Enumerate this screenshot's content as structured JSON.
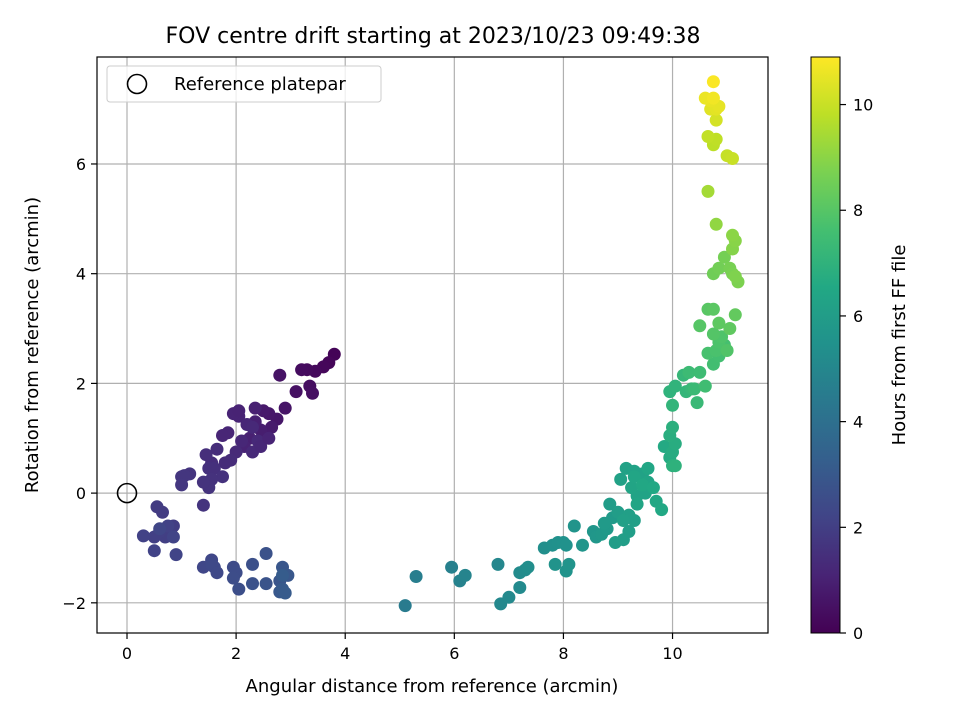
{
  "chart_data": {
    "type": "scatter",
    "title": "FOV centre drift starting at 2023/10/23 09:49:38",
    "xlabel": "Angular distance from reference (arcmin)",
    "ylabel": "Rotation from reference (arcmin)",
    "xlim": [
      -0.55,
      11.75
    ],
    "ylim": [
      -2.55,
      7.95
    ],
    "xticks": [
      0,
      2,
      4,
      6,
      8,
      10
    ],
    "yticks": [
      -2,
      0,
      2,
      4,
      6
    ],
    "grid": true,
    "legend": {
      "placement": "top-left",
      "entries": [
        "Reference platepar"
      ]
    },
    "reference_point": {
      "x": 0,
      "y": 0,
      "label": "Reference platepar"
    },
    "colorbar": {
      "label": "Hours from first FF file",
      "min": 0,
      "max": 10.9,
      "ticks": [
        0,
        2,
        4,
        6,
        8,
        10
      ],
      "colormap": "viridis"
    },
    "points": [
      [
        3.8,
        2.53,
        0.1
      ],
      [
        3.7,
        2.38,
        0.15
      ],
      [
        3.6,
        2.3,
        0.2
      ],
      [
        3.45,
        2.22,
        0.25
      ],
      [
        3.3,
        2.25,
        0.3
      ],
      [
        3.2,
        2.25,
        0.35
      ],
      [
        3.35,
        1.95,
        0.4
      ],
      [
        3.4,
        1.82,
        0.45
      ],
      [
        3.1,
        1.85,
        0.5
      ],
      [
        2.8,
        2.15,
        0.55
      ],
      [
        2.9,
        1.55,
        0.6
      ],
      [
        2.75,
        1.35,
        0.65
      ],
      [
        2.6,
        1.45,
        0.7
      ],
      [
        2.5,
        1.5,
        0.75
      ],
      [
        2.65,
        1.2,
        0.8
      ],
      [
        2.55,
        1.05,
        0.85
      ],
      [
        2.45,
        1.15,
        0.9
      ],
      [
        2.35,
        1.3,
        0.95
      ],
      [
        2.25,
        1.0,
        1.0
      ],
      [
        2.15,
        0.85,
        1.05
      ],
      [
        2.05,
        1.4,
        1.1
      ],
      [
        1.95,
        1.45,
        1.1
      ],
      [
        1.85,
        1.1,
        1.15
      ],
      [
        1.75,
        1.05,
        1.15
      ],
      [
        2.1,
        0.95,
        1.2
      ],
      [
        2.2,
        1.25,
        1.2
      ],
      [
        2.3,
        1.2,
        1.25
      ],
      [
        2.4,
        0.95,
        1.25
      ],
      [
        2.0,
        0.75,
        1.3
      ],
      [
        1.9,
        0.6,
        1.35
      ],
      [
        1.8,
        0.55,
        1.35
      ],
      [
        1.65,
        0.8,
        1.4
      ],
      [
        1.55,
        0.55,
        1.4
      ],
      [
        1.45,
        0.7,
        1.45
      ],
      [
        1.5,
        0.45,
        1.5
      ],
      [
        1.6,
        0.45,
        1.5
      ],
      [
        1.75,
        0.3,
        1.55
      ],
      [
        1.55,
        0.25,
        1.55
      ],
      [
        1.5,
        0.1,
        1.6
      ],
      [
        1.4,
        0.2,
        1.6
      ],
      [
        1.4,
        -0.22,
        1.65
      ],
      [
        1.15,
        0.35,
        1.65
      ],
      [
        1.05,
        0.32,
        1.7
      ],
      [
        1.0,
        0.3,
        1.7
      ],
      [
        1.0,
        0.15,
        1.75
      ],
      [
        2.3,
        0.75,
        1.25
      ],
      [
        2.45,
        0.85,
        1.2
      ],
      [
        2.6,
        1.0,
        1.1
      ],
      [
        2.35,
        1.55,
        1.0
      ],
      [
        2.05,
        1.5,
        1.05
      ],
      [
        0.65,
        -0.35,
        1.9
      ],
      [
        0.55,
        -0.25,
        1.9
      ],
      [
        0.85,
        -0.6,
        1.95
      ],
      [
        0.8,
        -0.75,
        2.0
      ],
      [
        0.7,
        -0.8,
        2.0
      ],
      [
        0.6,
        -0.7,
        2.05
      ],
      [
        0.5,
        -0.8,
        2.05
      ],
      [
        0.3,
        -0.78,
        2.1
      ],
      [
        0.75,
        -0.6,
        2.1
      ],
      [
        0.5,
        -1.05,
        2.15
      ],
      [
        0.9,
        -1.12,
        2.2
      ],
      [
        0.85,
        -0.8,
        2.2
      ],
      [
        0.6,
        -0.65,
        2.25
      ],
      [
        1.4,
        -1.35,
        2.3
      ],
      [
        1.55,
        -1.22,
        2.3
      ],
      [
        1.6,
        -1.35,
        2.35
      ],
      [
        1.55,
        -1.3,
        2.4
      ],
      [
        1.65,
        -1.45,
        2.4
      ],
      [
        1.95,
        -1.35,
        2.45
      ],
      [
        2.0,
        -1.45,
        2.5
      ],
      [
        1.95,
        -1.55,
        2.55
      ],
      [
        2.05,
        -1.75,
        2.6
      ],
      [
        2.3,
        -1.3,
        2.65
      ],
      [
        2.3,
        -1.65,
        2.7
      ],
      [
        2.55,
        -1.1,
        2.75
      ],
      [
        2.55,
        -1.65,
        2.8
      ],
      [
        2.8,
        -1.6,
        2.85
      ],
      [
        2.85,
        -1.35,
        2.9
      ],
      [
        2.95,
        -1.5,
        2.95
      ],
      [
        2.8,
        -1.8,
        3.0
      ],
      [
        2.85,
        -1.75,
        3.05
      ],
      [
        2.9,
        -1.82,
        3.1
      ],
      [
        2.85,
        -1.5,
        3.15
      ],
      [
        5.1,
        -2.05,
        4.5
      ],
      [
        5.3,
        -1.52,
        4.6
      ],
      [
        5.95,
        -1.35,
        4.7
      ],
      [
        6.1,
        -1.6,
        4.8
      ],
      [
        6.2,
        -1.5,
        4.9
      ],
      [
        6.8,
        -1.3,
        5.0
      ],
      [
        6.85,
        -2.02,
        5.05
      ],
      [
        7.0,
        -1.9,
        5.1
      ],
      [
        7.2,
        -1.72,
        5.15
      ],
      [
        7.2,
        -1.45,
        5.2
      ],
      [
        7.3,
        -1.4,
        5.25
      ],
      [
        7.35,
        -1.35,
        5.3
      ],
      [
        7.65,
        -1.0,
        5.35
      ],
      [
        7.8,
        -0.95,
        5.4
      ],
      [
        7.9,
        -0.9,
        5.45
      ],
      [
        8.0,
        -0.9,
        5.5
      ],
      [
        8.05,
        -0.95,
        5.5
      ],
      [
        7.85,
        -1.3,
        5.55
      ],
      [
        8.05,
        -1.42,
        5.55
      ],
      [
        8.1,
        -1.3,
        5.6
      ],
      [
        8.2,
        -0.6,
        5.6
      ],
      [
        8.35,
        -0.95,
        5.65
      ],
      [
        8.55,
        -0.7,
        5.7
      ],
      [
        8.6,
        -0.8,
        5.75
      ],
      [
        8.7,
        -0.75,
        5.8
      ],
      [
        8.8,
        -0.65,
        5.85
      ],
      [
        8.9,
        -0.45,
        5.9
      ],
      [
        8.75,
        -0.55,
        5.9
      ],
      [
        8.85,
        -0.2,
        5.95
      ],
      [
        9.0,
        -0.35,
        6.0
      ],
      [
        8.95,
        -0.9,
        6.0
      ],
      [
        9.1,
        -0.85,
        6.05
      ],
      [
        9.2,
        -0.7,
        6.05
      ],
      [
        9.3,
        -0.5,
        6.1
      ],
      [
        9.2,
        -0.4,
        6.1
      ],
      [
        9.1,
        -0.5,
        6.15
      ],
      [
        9.05,
        0.25,
        6.2
      ],
      [
        9.15,
        0.45,
        6.2
      ],
      [
        9.3,
        0.4,
        6.25
      ],
      [
        9.45,
        0.35,
        6.25
      ],
      [
        9.35,
        -0.05,
        6.3
      ],
      [
        9.5,
        0.0,
        6.3
      ],
      [
        9.55,
        0.2,
        6.35
      ],
      [
        9.25,
        0.1,
        6.35
      ],
      [
        9.35,
        -0.2,
        6.4
      ],
      [
        9.3,
        0.3,
        6.4
      ],
      [
        9.55,
        0.45,
        6.45
      ],
      [
        9.45,
        0.15,
        6.5
      ],
      [
        9.7,
        -0.15,
        6.5
      ],
      [
        9.8,
        -0.3,
        6.55
      ],
      [
        9.65,
        0.1,
        6.55
      ],
      [
        9.85,
        0.85,
        6.6
      ],
      [
        9.95,
        0.65,
        6.65
      ],
      [
        10.0,
        0.75,
        6.7
      ],
      [
        10.05,
        0.9,
        6.75
      ],
      [
        9.95,
        1.05,
        6.8
      ],
      [
        10.0,
        1.2,
        6.85
      ],
      [
        10.0,
        0.5,
        6.9
      ],
      [
        10.05,
        0.5,
        6.95
      ],
      [
        9.95,
        1.85,
        7.0
      ],
      [
        10.05,
        1.95,
        7.05
      ],
      [
        10.0,
        1.6,
        7.1
      ],
      [
        10.25,
        1.85,
        7.15
      ],
      [
        10.2,
        2.15,
        7.2
      ],
      [
        10.35,
        1.9,
        7.25
      ],
      [
        10.45,
        1.65,
        7.3
      ],
      [
        10.4,
        1.9,
        7.35
      ],
      [
        10.3,
        2.2,
        7.4
      ],
      [
        10.5,
        2.2,
        7.45
      ],
      [
        10.6,
        1.95,
        7.5
      ],
      [
        10.75,
        2.35,
        7.55
      ],
      [
        10.85,
        2.5,
        7.6
      ],
      [
        10.95,
        2.7,
        7.65
      ],
      [
        10.65,
        2.55,
        7.7
      ],
      [
        10.8,
        2.6,
        7.75
      ],
      [
        10.85,
        2.75,
        7.8
      ],
      [
        10.9,
        2.85,
        7.85
      ],
      [
        11.0,
        2.6,
        7.9
      ],
      [
        10.75,
        2.9,
        7.95
      ],
      [
        10.5,
        3.05,
        8.0
      ],
      [
        10.65,
        3.35,
        8.05
      ],
      [
        10.75,
        3.35,
        8.1
      ],
      [
        10.85,
        3.1,
        8.15
      ],
      [
        11.05,
        3.0,
        8.2
      ],
      [
        11.15,
        3.25,
        8.25
      ],
      [
        10.75,
        4.0,
        8.5
      ],
      [
        10.85,
        4.1,
        8.55
      ],
      [
        10.95,
        4.3,
        8.6
      ],
      [
        11.05,
        4.1,
        8.65
      ],
      [
        11.1,
        4.0,
        8.7
      ],
      [
        11.2,
        3.85,
        8.75
      ],
      [
        11.15,
        3.95,
        8.8
      ],
      [
        11.1,
        4.45,
        8.9
      ],
      [
        11.15,
        4.6,
        8.95
      ],
      [
        11.1,
        4.7,
        9.0
      ],
      [
        10.8,
        4.9,
        9.1
      ],
      [
        10.65,
        5.5,
        9.4
      ],
      [
        10.75,
        6.35,
        9.8
      ],
      [
        10.8,
        6.45,
        9.85
      ],
      [
        10.65,
        6.5,
        9.9
      ],
      [
        11.0,
        6.15,
        9.95
      ],
      [
        11.1,
        6.1,
        10.0
      ],
      [
        10.8,
        6.8,
        10.2
      ],
      [
        10.7,
        7.0,
        10.4
      ],
      [
        10.8,
        7.0,
        10.45
      ],
      [
        10.85,
        7.05,
        10.5
      ],
      [
        10.7,
        7.15,
        10.55
      ],
      [
        10.6,
        7.2,
        10.6
      ],
      [
        10.75,
        7.2,
        10.7
      ],
      [
        10.75,
        7.5,
        10.85
      ]
    ]
  }
}
